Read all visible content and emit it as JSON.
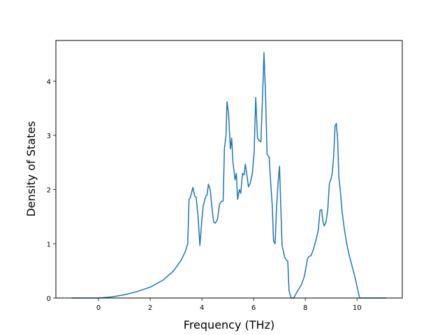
{
  "chart_data": {
    "type": "line",
    "title": "",
    "xlabel": "Frequency (THz)",
    "ylabel": "Density of States",
    "xlim": [
      -1.65,
      11.75
    ],
    "ylim": [
      0,
      4.75
    ],
    "xticks": [
      0,
      2,
      4,
      6,
      8,
      10
    ],
    "yticks": [
      0,
      1,
      2,
      3,
      4
    ],
    "xtick_labels": [
      "0",
      "2",
      "4",
      "6",
      "8",
      "10"
    ],
    "ytick_labels": [
      "0",
      "1",
      "2",
      "3",
      "4"
    ],
    "grid": false,
    "line_color": "#1f77b4",
    "series": [
      {
        "points": [
          [
            -1.05,
            0
          ],
          [
            0,
            0
          ],
          [
            0.5,
            0.02
          ],
          [
            1.0,
            0.06
          ],
          [
            1.5,
            0.12
          ],
          [
            2.0,
            0.2
          ],
          [
            2.5,
            0.33
          ],
          [
            2.9,
            0.5
          ],
          [
            3.2,
            0.7
          ],
          [
            3.35,
            0.85
          ],
          [
            3.45,
            1.0
          ],
          [
            3.5,
            1.82
          ],
          [
            3.55,
            1.85
          ],
          [
            3.65,
            2.04
          ],
          [
            3.72,
            1.88
          ],
          [
            3.78,
            1.85
          ],
          [
            3.85,
            1.5
          ],
          [
            3.92,
            0.97
          ],
          [
            4.0,
            1.45
          ],
          [
            4.05,
            1.7
          ],
          [
            4.15,
            1.88
          ],
          [
            4.2,
            1.9
          ],
          [
            4.25,
            2.1
          ],
          [
            4.32,
            2.0
          ],
          [
            4.38,
            1.7
          ],
          [
            4.45,
            1.4
          ],
          [
            4.52,
            1.38
          ],
          [
            4.6,
            1.45
          ],
          [
            4.68,
            1.73
          ],
          [
            4.75,
            1.78
          ],
          [
            4.82,
            1.79
          ],
          [
            4.87,
            2.75
          ],
          [
            4.93,
            3.0
          ],
          [
            4.97,
            3.62
          ],
          [
            5.03,
            3.4
          ],
          [
            5.1,
            2.75
          ],
          [
            5.15,
            2.95
          ],
          [
            5.2,
            2.5
          ],
          [
            5.28,
            2.18
          ],
          [
            5.33,
            2.3
          ],
          [
            5.38,
            1.82
          ],
          [
            5.45,
            2.0
          ],
          [
            5.5,
            1.93
          ],
          [
            5.57,
            2.3
          ],
          [
            5.63,
            2.27
          ],
          [
            5.68,
            2.47
          ],
          [
            5.73,
            2.3
          ],
          [
            5.8,
            2.05
          ],
          [
            5.87,
            2.12
          ],
          [
            5.95,
            2.3
          ],
          [
            6.02,
            2.7
          ],
          [
            6.08,
            3.7
          ],
          [
            6.15,
            2.95
          ],
          [
            6.22,
            2.9
          ],
          [
            6.28,
            2.88
          ],
          [
            6.35,
            3.8
          ],
          [
            6.4,
            4.53
          ],
          [
            6.46,
            3.75
          ],
          [
            6.52,
            2.65
          ],
          [
            6.6,
            2.6
          ],
          [
            6.65,
            2.2
          ],
          [
            6.72,
            1.7
          ],
          [
            6.77,
            1.05
          ],
          [
            6.83,
            1.0
          ],
          [
            6.88,
            1.6
          ],
          [
            6.94,
            2.1
          ],
          [
            7.0,
            2.43
          ],
          [
            7.05,
            1.7
          ],
          [
            7.1,
            0.97
          ],
          [
            7.2,
            0.75
          ],
          [
            7.27,
            0.7
          ],
          [
            7.32,
            0.68
          ],
          [
            7.37,
            0.13
          ],
          [
            7.45,
            0
          ],
          [
            7.55,
            0
          ],
          [
            7.7,
            0.13
          ],
          [
            7.85,
            0.25
          ],
          [
            7.95,
            0.38
          ],
          [
            8.02,
            0.55
          ],
          [
            8.08,
            0.72
          ],
          [
            8.15,
            0.77
          ],
          [
            8.22,
            0.78
          ],
          [
            8.3,
            0.88
          ],
          [
            8.4,
            1.05
          ],
          [
            8.5,
            1.25
          ],
          [
            8.57,
            1.62
          ],
          [
            8.63,
            1.63
          ],
          [
            8.68,
            1.42
          ],
          [
            8.73,
            1.33
          ],
          [
            8.8,
            1.4
          ],
          [
            8.87,
            1.65
          ],
          [
            8.93,
            2.12
          ],
          [
            9.0,
            2.2
          ],
          [
            9.05,
            2.35
          ],
          [
            9.1,
            2.65
          ],
          [
            9.15,
            3.18
          ],
          [
            9.2,
            3.22
          ],
          [
            9.25,
            2.9
          ],
          [
            9.3,
            2.2
          ],
          [
            9.35,
            2.0
          ],
          [
            9.42,
            1.6
          ],
          [
            9.5,
            1.3
          ],
          [
            9.6,
            1.0
          ],
          [
            9.7,
            0.78
          ],
          [
            9.8,
            0.6
          ],
          [
            9.9,
            0.42
          ],
          [
            9.97,
            0.28
          ],
          [
            10.05,
            0.1
          ],
          [
            10.1,
            0
          ],
          [
            10.3,
            0
          ],
          [
            11.15,
            0
          ]
        ]
      }
    ]
  }
}
